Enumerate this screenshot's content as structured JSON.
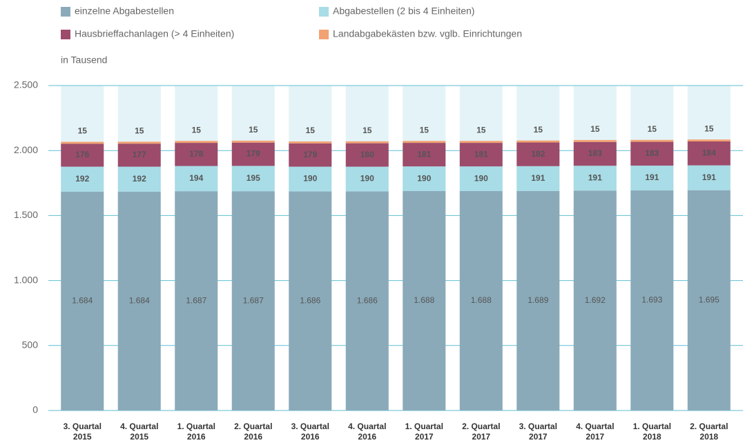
{
  "chart_data": {
    "type": "stacked_bar",
    "annotation": "in Tausend",
    "categories": [
      "3. Quartal 2015",
      "4. Quartal 2015",
      "1. Quartal 2016",
      "2. Quartal 2016",
      "3. Quartal 2016",
      "4. Quartal 2016",
      "1. Quartal 2017",
      "2. Quartal 2017",
      "3. Quartal 2017",
      "4. Quartal 2017",
      "1. Quartal 2018",
      "2. Quartal 2018"
    ],
    "series": [
      {
        "name": "einzelne Abgabestellen",
        "color": "#8aaab9",
        "label_color": "#ffffff",
        "values": [
          1684,
          1684,
          1687,
          1687,
          1686,
          1686,
          1688,
          1688,
          1689,
          1692,
          1693,
          1695
        ],
        "value_labels": [
          "1.684",
          "1.684",
          "1.687",
          "1.687",
          "1.686",
          "1.686",
          "1.688",
          "1.688",
          "1.689",
          "1.692",
          "1.693",
          "1.695"
        ]
      },
      {
        "name": "Abgabestellen (2 bis 4 Einheiten)",
        "color": "#a8dce6",
        "label_color": "#333333",
        "values": [
          192,
          192,
          194,
          195,
          190,
          190,
          190,
          190,
          191,
          191,
          191,
          191
        ]
      },
      {
        "name": "Hausbrieffachanlagen (> 4 Einheiten)",
        "color": "#9c4b6b",
        "label_color": "#ffffff",
        "values": [
          176,
          177,
          178,
          179,
          179,
          180,
          181,
          181,
          182,
          183,
          183,
          184
        ]
      },
      {
        "name": "Landabgabekästen bzw. vglb. Einrichtungen",
        "color": "#f2a273",
        "label_color": "#333333",
        "values": [
          15,
          15,
          15,
          15,
          15,
          15,
          15,
          15,
          15,
          15,
          15,
          15
        ]
      }
    ],
    "ylim": [
      0,
      2500
    ],
    "yticks": [
      0,
      500,
      {
        "value": 1000,
        "label": "1.000"
      },
      {
        "value": 1500,
        "label": "1.500"
      },
      {
        "value": 2000,
        "label": "2.000"
      },
      {
        "value": 2500,
        "label": "2.500"
      }
    ],
    "grid": true,
    "grid_color": "#5bbfd3",
    "background_bar_color": "#e4f3f7"
  }
}
